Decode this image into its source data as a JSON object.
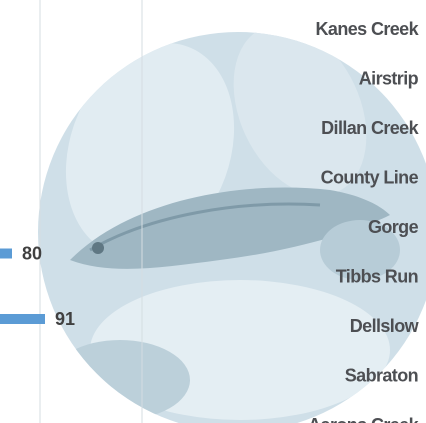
{
  "chart_data": {
    "type": "bar",
    "orientation": "horizontal",
    "categories": [
      "Kanes Creek",
      "Airstrip",
      "Dillan Creek",
      "County Line",
      "Gorge",
      "Tibbs Run",
      "Dellslow",
      "Sabraton",
      "Aarons Creek"
    ],
    "values": [
      null,
      null,
      null,
      null,
      null,
      80,
      91,
      null,
      null
    ],
    "color": "#5b9bd5"
  }
}
